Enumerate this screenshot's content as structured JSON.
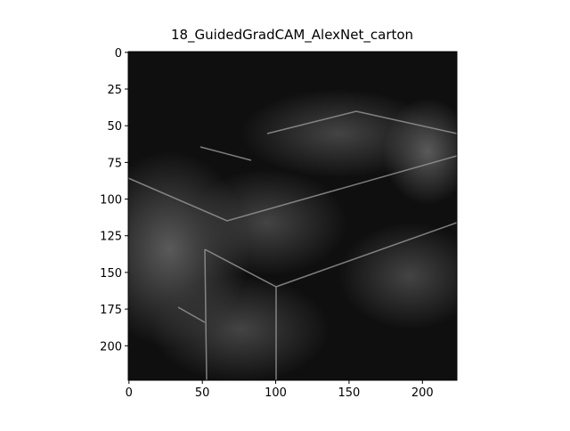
{
  "chart_data": {
    "type": "image",
    "title": "18_GuidedGradCAM_AlexNet_carton",
    "xlim": [
      -0.5,
      223.5
    ],
    "ylim": [
      223.5,
      -0.5
    ],
    "xticks": [
      0,
      50,
      100,
      150,
      200
    ],
    "yticks": [
      0,
      25,
      50,
      75,
      100,
      125,
      150,
      175,
      200
    ]
  }
}
